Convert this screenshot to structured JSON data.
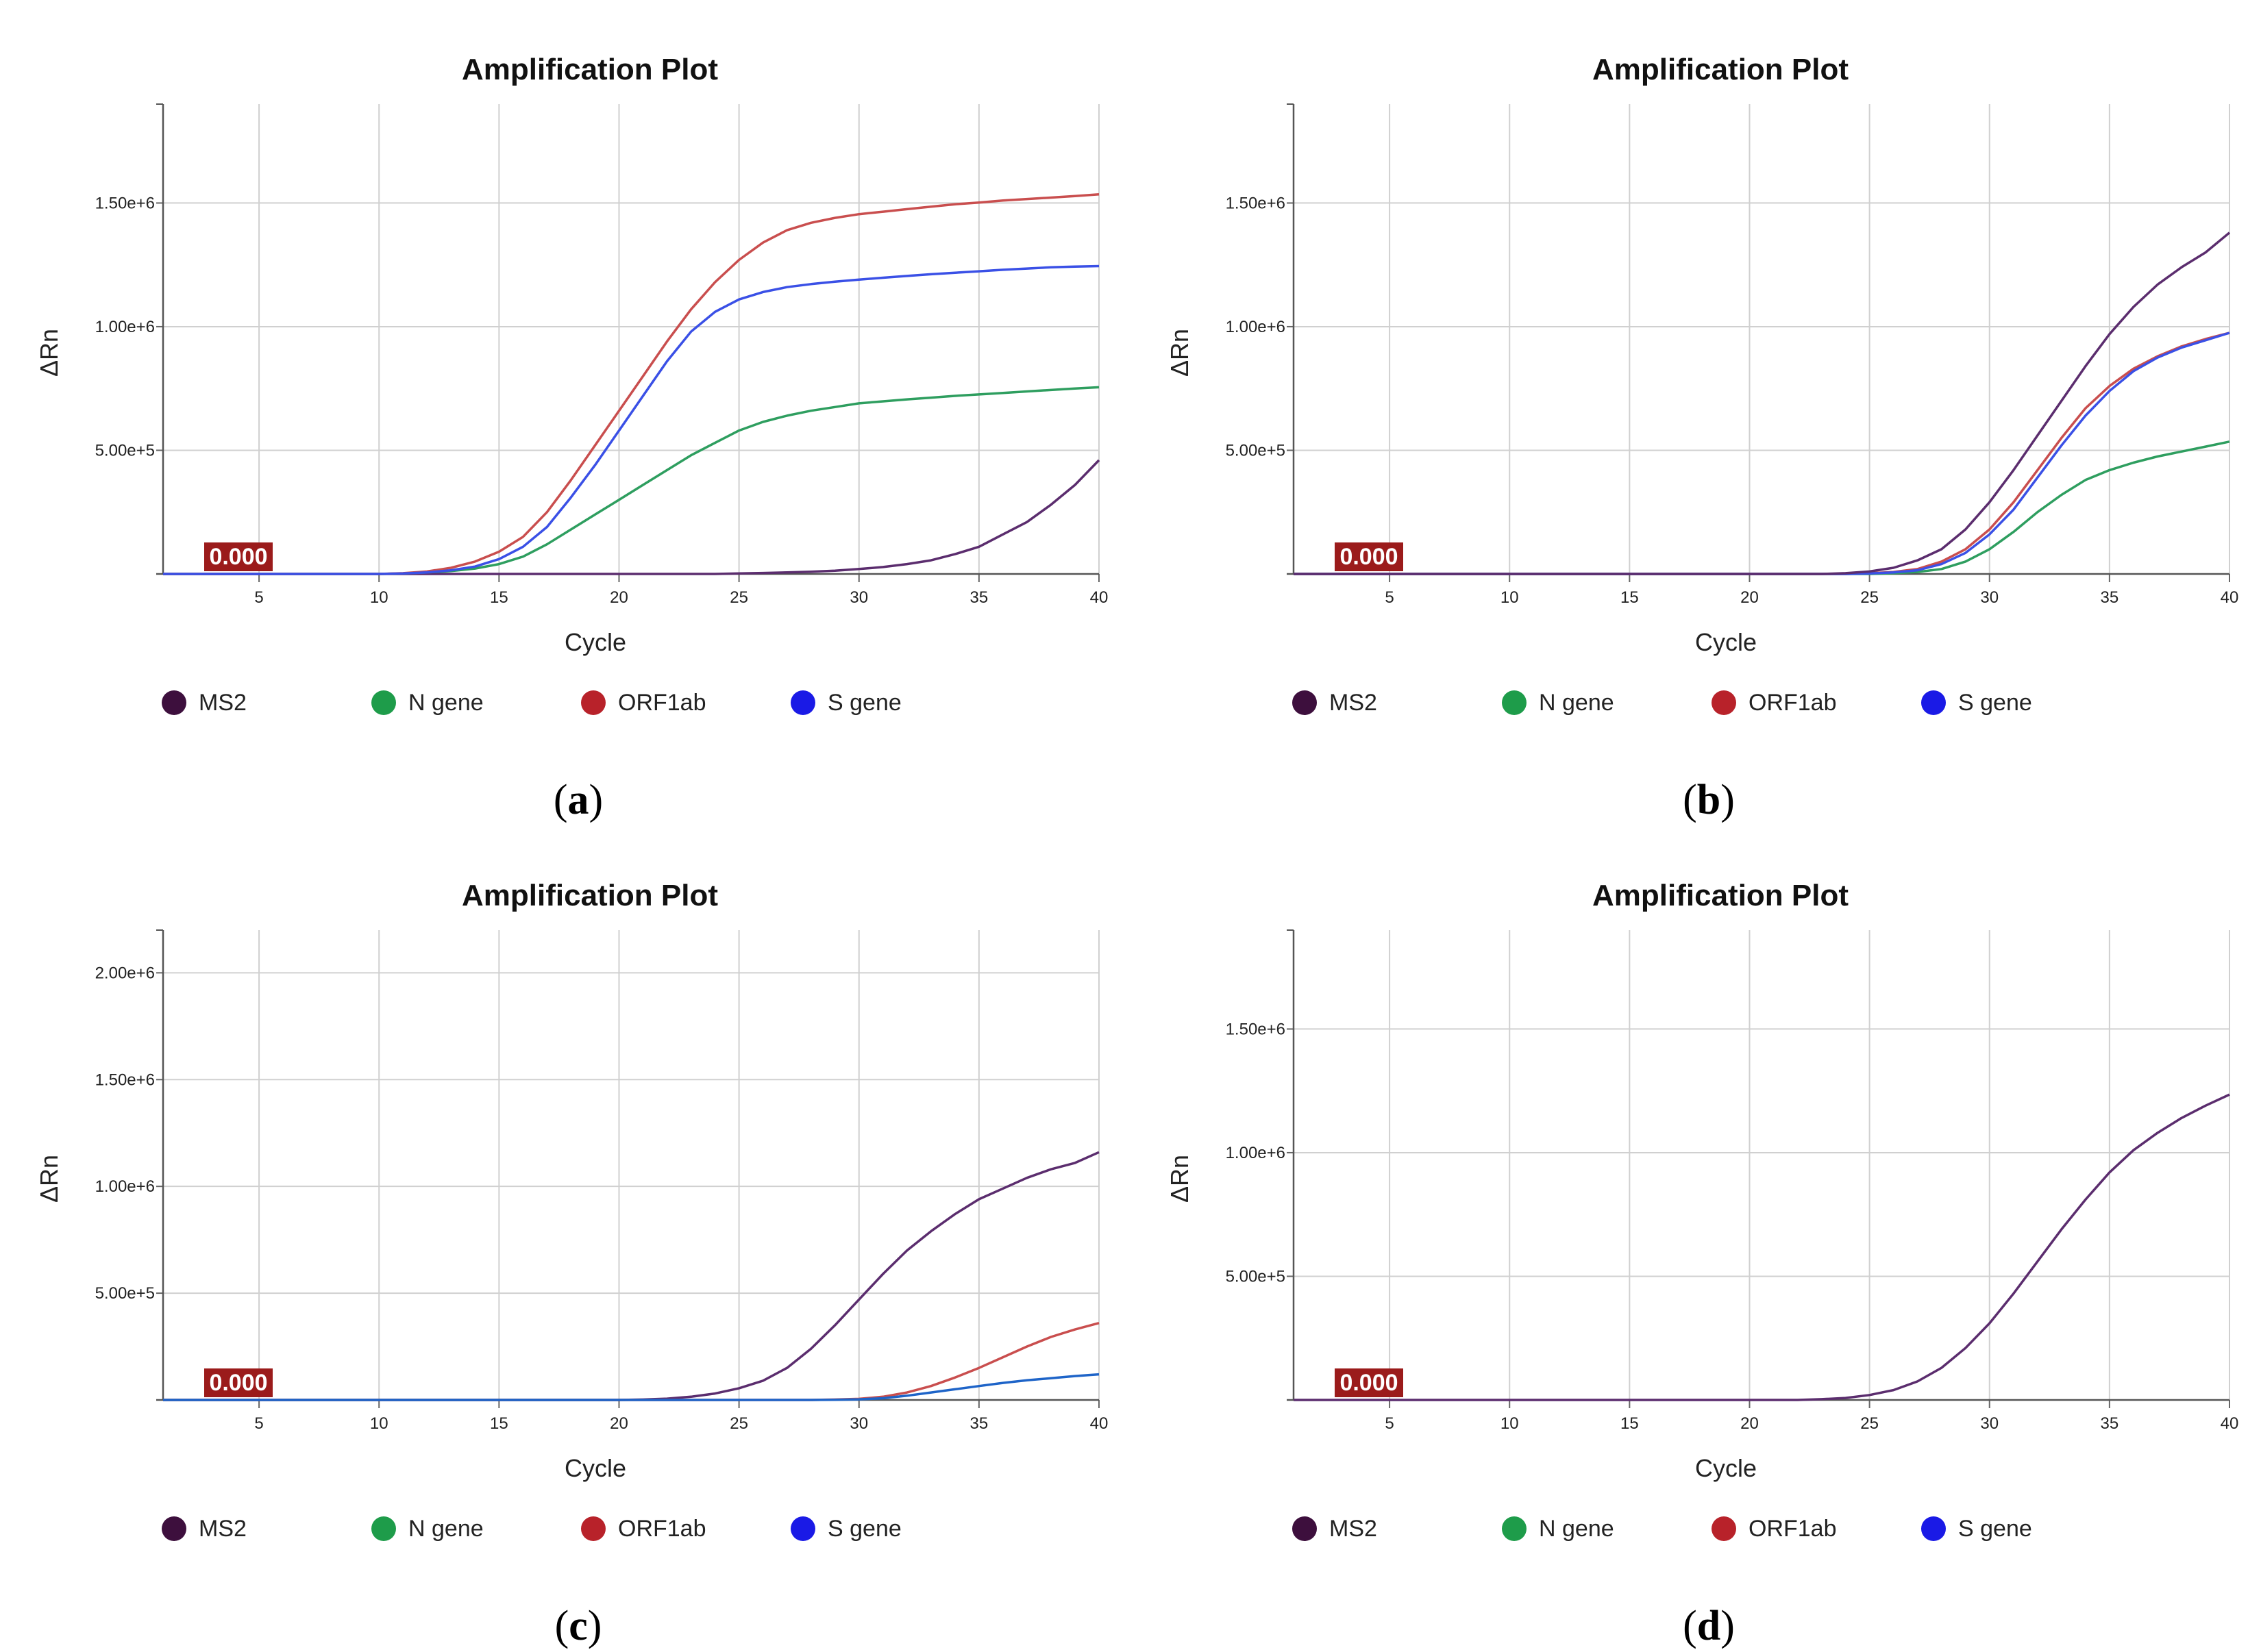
{
  "chart_data": [
    {
      "panel_label": "a",
      "type": "line",
      "title": "Amplification Plot",
      "xlabel": "Cycle",
      "ylabel": "ΔRn",
      "xlim": [
        1,
        40
      ],
      "ylim": [
        0,
        1900000
      ],
      "x_ticks": [
        5,
        10,
        15,
        20,
        25,
        30,
        35,
        40
      ],
      "y_ticks": [
        500000,
        1000000,
        1500000
      ],
      "y_tick_labels": [
        "5.00e+5",
        "1.00e+6",
        "1.50e+6"
      ],
      "threshold_label": "0.000",
      "x": [
        1,
        2,
        3,
        4,
        5,
        6,
        7,
        8,
        9,
        10,
        11,
        12,
        13,
        14,
        15,
        16,
        17,
        18,
        19,
        20,
        21,
        22,
        23,
        24,
        25,
        26,
        27,
        28,
        29,
        30,
        31,
        32,
        33,
        34,
        35,
        36,
        37,
        38,
        39,
        40
      ],
      "series": [
        {
          "name": "MS2",
          "color": "#5b2d6e",
          "values": [
            0,
            0,
            0,
            0,
            0,
            0,
            0,
            0,
            0,
            0,
            0,
            0,
            0,
            0,
            0,
            0,
            0,
            0,
            0,
            0,
            0,
            0,
            0,
            0,
            2000,
            4000,
            6000,
            9000,
            13000,
            20000,
            28000,
            40000,
            55000,
            80000,
            110000,
            160000,
            210000,
            280000,
            360000,
            460000
          ]
        },
        {
          "name": "N gene",
          "color": "#2e9e5f",
          "values": [
            0,
            0,
            0,
            0,
            0,
            0,
            0,
            0,
            0,
            0,
            2000,
            6000,
            12000,
            22000,
            40000,
            70000,
            120000,
            180000,
            240000,
            300000,
            360000,
            420000,
            480000,
            530000,
            580000,
            615000,
            640000,
            660000,
            675000,
            690000,
            698000,
            706000,
            713000,
            720000,
            726000,
            732000,
            738000,
            744000,
            750000,
            755000
          ]
        },
        {
          "name": "ORF1ab",
          "color": "#c94e4e",
          "values": [
            0,
            0,
            0,
            0,
            0,
            0,
            0,
            0,
            0,
            0,
            3000,
            10000,
            25000,
            50000,
            90000,
            150000,
            250000,
            380000,
            520000,
            660000,
            800000,
            940000,
            1070000,
            1180000,
            1270000,
            1340000,
            1390000,
            1420000,
            1440000,
            1455000,
            1465000,
            1475000,
            1485000,
            1495000,
            1502000,
            1510000,
            1516000,
            1522000,
            1528000,
            1535000
          ]
        },
        {
          "name": "S gene",
          "color": "#3a50e6",
          "values": [
            0,
            0,
            0,
            0,
            0,
            0,
            0,
            0,
            0,
            0,
            2000,
            6000,
            15000,
            30000,
            60000,
            110000,
            190000,
            310000,
            440000,
            580000,
            720000,
            860000,
            980000,
            1060000,
            1110000,
            1140000,
            1160000,
            1172000,
            1182000,
            1190000,
            1198000,
            1205000,
            1212000,
            1218000,
            1224000,
            1230000,
            1235000,
            1240000,
            1243000,
            1245000
          ]
        }
      ],
      "legend": [
        {
          "label": "MS2",
          "color": "#3d0f3d"
        },
        {
          "label": "N gene",
          "color": "#1e9c4a"
        },
        {
          "label": "ORF1ab",
          "color": "#b8222a"
        },
        {
          "label": "S gene",
          "color": "#1a1ae6"
        }
      ]
    },
    {
      "panel_label": "b",
      "type": "line",
      "title": "Amplification Plot",
      "xlabel": "Cycle",
      "ylabel": "ΔRn",
      "xlim": [
        1,
        40
      ],
      "ylim": [
        0,
        1900000
      ],
      "x_ticks": [
        5,
        10,
        15,
        20,
        25,
        30,
        35,
        40
      ],
      "y_ticks": [
        500000,
        1000000,
        1500000
      ],
      "y_tick_labels": [
        "5.00e+5",
        "1.00e+6",
        "1.50e+6"
      ],
      "threshold_label": "0.000",
      "x": [
        1,
        2,
        3,
        4,
        5,
        6,
        7,
        8,
        9,
        10,
        11,
        12,
        13,
        14,
        15,
        16,
        17,
        18,
        19,
        20,
        21,
        22,
        23,
        24,
        25,
        26,
        27,
        28,
        29,
        30,
        31,
        32,
        33,
        34,
        35,
        36,
        37,
        38,
        39,
        40
      ],
      "series": [
        {
          "name": "N gene",
          "color": "#2e9e5f",
          "values": [
            0,
            0,
            0,
            0,
            0,
            0,
            0,
            0,
            0,
            0,
            0,
            0,
            0,
            0,
            0,
            0,
            0,
            0,
            0,
            0,
            0,
            0,
            0,
            0,
            0,
            3000,
            8000,
            20000,
            50000,
            100000,
            170000,
            250000,
            320000,
            380000,
            420000,
            450000,
            475000,
            495000,
            515000,
            535000
          ]
        },
        {
          "name": "ORF1ab",
          "color": "#c94e4e",
          "values": [
            0,
            0,
            0,
            0,
            0,
            0,
            0,
            0,
            0,
            0,
            0,
            0,
            0,
            0,
            0,
            0,
            0,
            0,
            0,
            0,
            0,
            0,
            0,
            0,
            3000,
            8000,
            20000,
            50000,
            100000,
            180000,
            290000,
            420000,
            550000,
            670000,
            760000,
            830000,
            880000,
            920000,
            950000,
            975000
          ]
        },
        {
          "name": "S gene",
          "color": "#3a50e6",
          "values": [
            0,
            0,
            0,
            0,
            0,
            0,
            0,
            0,
            0,
            0,
            0,
            0,
            0,
            0,
            0,
            0,
            0,
            0,
            0,
            0,
            0,
            0,
            0,
            0,
            2000,
            6000,
            15000,
            40000,
            85000,
            160000,
            260000,
            390000,
            520000,
            640000,
            740000,
            820000,
            875000,
            915000,
            945000,
            975000
          ]
        },
        {
          "name": "MS2",
          "color": "#5b2d6e",
          "values": [
            0,
            0,
            0,
            0,
            0,
            0,
            0,
            0,
            0,
            0,
            0,
            0,
            0,
            0,
            0,
            0,
            0,
            0,
            0,
            0,
            0,
            0,
            0,
            3000,
            10000,
            25000,
            55000,
            100000,
            180000,
            290000,
            420000,
            560000,
            700000,
            840000,
            970000,
            1080000,
            1170000,
            1240000,
            1300000,
            1380000
          ]
        }
      ],
      "legend": [
        {
          "label": "MS2",
          "color": "#3d0f3d"
        },
        {
          "label": "N gene",
          "color": "#1e9c4a"
        },
        {
          "label": "ORF1ab",
          "color": "#b8222a"
        },
        {
          "label": "S gene",
          "color": "#1a1ae6"
        }
      ]
    },
    {
      "panel_label": "c",
      "type": "line",
      "title": "Amplification Plot",
      "xlabel": "Cycle",
      "ylabel": "ΔRn",
      "xlim": [
        1,
        40
      ],
      "ylim": [
        0,
        2200000
      ],
      "x_ticks": [
        5,
        10,
        15,
        20,
        25,
        30,
        35,
        40
      ],
      "y_ticks": [
        500000,
        1000000,
        1500000,
        2000000
      ],
      "y_tick_labels": [
        "5.00e+5",
        "1.00e+6",
        "1.50e+6",
        "2.00e+6"
      ],
      "threshold_label": "0.000",
      "x": [
        1,
        2,
        3,
        4,
        5,
        6,
        7,
        8,
        9,
        10,
        11,
        12,
        13,
        14,
        15,
        16,
        17,
        18,
        19,
        20,
        21,
        22,
        23,
        24,
        25,
        26,
        27,
        28,
        29,
        30,
        31,
        32,
        33,
        34,
        35,
        36,
        37,
        38,
        39,
        40
      ],
      "series": [
        {
          "name": "MS2",
          "color": "#5b2d6e",
          "values": [
            0,
            0,
            0,
            0,
            0,
            0,
            0,
            0,
            0,
            0,
            0,
            0,
            0,
            0,
            0,
            0,
            0,
            0,
            0,
            0,
            2000,
            6000,
            15000,
            30000,
            55000,
            90000,
            150000,
            240000,
            350000,
            470000,
            590000,
            700000,
            790000,
            870000,
            940000,
            990000,
            1040000,
            1080000,
            1110000,
            1160000
          ]
        },
        {
          "name": "ORF1ab",
          "color": "#c94e4e",
          "values": [
            0,
            0,
            0,
            0,
            0,
            0,
            0,
            0,
            0,
            0,
            0,
            0,
            0,
            0,
            0,
            0,
            0,
            0,
            0,
            0,
            0,
            0,
            0,
            0,
            0,
            0,
            0,
            0,
            2000,
            5000,
            15000,
            35000,
            65000,
            105000,
            150000,
            200000,
            250000,
            295000,
            330000,
            360000
          ]
        },
        {
          "name": "S gene",
          "color": "#1e64c8",
          "values": [
            0,
            0,
            0,
            0,
            0,
            0,
            0,
            0,
            0,
            0,
            0,
            0,
            0,
            0,
            0,
            0,
            0,
            0,
            0,
            0,
            0,
            0,
            0,
            0,
            0,
            0,
            0,
            0,
            1000,
            3000,
            8000,
            20000,
            35000,
            50000,
            65000,
            80000,
            92000,
            102000,
            112000,
            120000
          ]
        }
      ],
      "legend": [
        {
          "label": "MS2",
          "color": "#3d0f3d"
        },
        {
          "label": "N gene",
          "color": "#1e9c4a"
        },
        {
          "label": "ORF1ab",
          "color": "#b8222a"
        },
        {
          "label": "S gene",
          "color": "#1a1ae6"
        }
      ]
    },
    {
      "panel_label": "d",
      "type": "line",
      "title": "Amplification Plot",
      "xlabel": "Cycle",
      "ylabel": "ΔRn",
      "xlim": [
        1,
        40
      ],
      "ylim": [
        0,
        1900000
      ],
      "x_ticks": [
        5,
        10,
        15,
        20,
        25,
        30,
        35,
        40
      ],
      "y_ticks": [
        500000,
        1000000,
        1500000
      ],
      "y_tick_labels": [
        "5.00e+5",
        "1.00e+6",
        "1.50e+6"
      ],
      "threshold_label": "0.000",
      "x": [
        1,
        2,
        3,
        4,
        5,
        6,
        7,
        8,
        9,
        10,
        11,
        12,
        13,
        14,
        15,
        16,
        17,
        18,
        19,
        20,
        21,
        22,
        23,
        24,
        25,
        26,
        27,
        28,
        29,
        30,
        31,
        32,
        33,
        34,
        35,
        36,
        37,
        38,
        39,
        40
      ],
      "series": [
        {
          "name": "MS2",
          "color": "#5b2d6e",
          "values": [
            0,
            0,
            0,
            0,
            0,
            0,
            0,
            0,
            0,
            0,
            0,
            0,
            0,
            0,
            0,
            0,
            0,
            0,
            0,
            0,
            0,
            0,
            3000,
            8000,
            20000,
            40000,
            75000,
            130000,
            210000,
            310000,
            430000,
            560000,
            690000,
            810000,
            920000,
            1010000,
            1080000,
            1140000,
            1190000,
            1235000
          ]
        }
      ],
      "legend": [
        {
          "label": "MS2",
          "color": "#3d0f3d"
        },
        {
          "label": "N gene",
          "color": "#1e9c4a"
        },
        {
          "label": "ORF1ab",
          "color": "#b8222a"
        },
        {
          "label": "S gene",
          "color": "#1a1ae6"
        }
      ]
    }
  ]
}
